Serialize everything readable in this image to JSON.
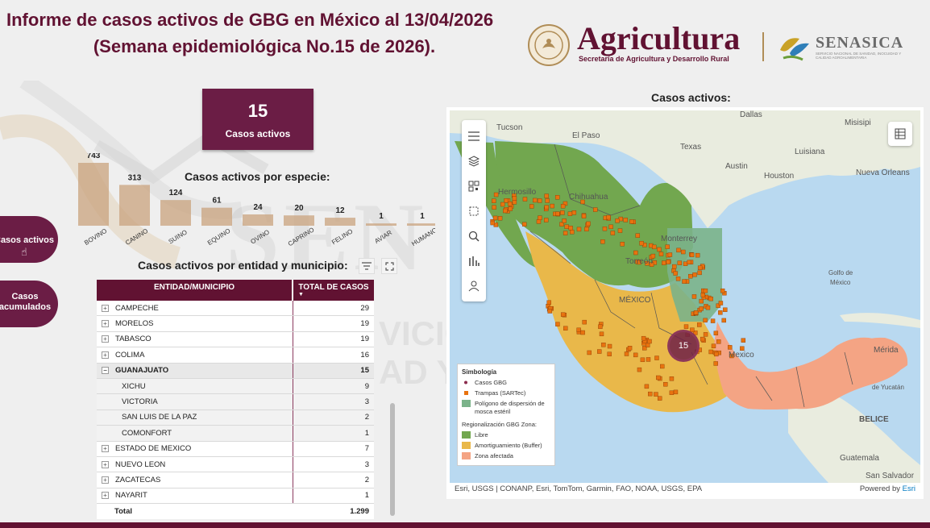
{
  "header": {
    "title_line1": "Informe de casos activos de GBG en México al 13/04/2026",
    "title_line2": "(Semana epidemiológica No.15 de 2026)."
  },
  "logos": {
    "agricultura": "Agricultura",
    "agricultura_sub": "Secretaría de Agricultura y Desarrollo Rural",
    "senasica": "SENASICA",
    "senasica_sub": "SERVICIO NACIONAL DE SANIDAD, INOCUIDAD Y CALIDAD AGROALIMENTARIA"
  },
  "kpi": {
    "value": "15",
    "label": "Casos activos"
  },
  "nav": {
    "active_cases_label": "Casos activos",
    "cumulative_line1": "Casos",
    "cumulative_line2": "acumulados"
  },
  "species_chart": {
    "title": "Casos activos por especie:"
  },
  "chart_data": {
    "type": "bar",
    "title": "Casos activos por especie:",
    "categories": [
      "BOVINO",
      "CANINO",
      "SUINO",
      "EQUINO",
      "OVINO",
      "CAPRINO",
      "FELINO",
      "AVIAR",
      "HUMANO"
    ],
    "values": [
      743,
      313,
      124,
      61,
      24,
      20,
      12,
      1,
      1
    ],
    "bar_color": "#c9a37e",
    "grid": false
  },
  "table": {
    "title": "Casos activos por entidad y municipio:",
    "col_entity": "ENTIDAD/MUNICIPIO",
    "col_total": "TOTAL DE CASOS",
    "rows": [
      {
        "name": "CAMPECHE",
        "total": "29",
        "level": 0,
        "expanded": false
      },
      {
        "name": "MORELOS",
        "total": "19",
        "level": 0,
        "expanded": false
      },
      {
        "name": "TABASCO",
        "total": "19",
        "level": 0,
        "expanded": false
      },
      {
        "name": "COLIMA",
        "total": "16",
        "level": 0,
        "expanded": false
      },
      {
        "name": "GUANAJUATO",
        "total": "15",
        "level": 0,
        "expanded": true
      },
      {
        "name": "XICHU",
        "total": "9",
        "level": 1
      },
      {
        "name": "VICTORIA",
        "total": "3",
        "level": 1
      },
      {
        "name": "SAN LUIS DE LA PAZ",
        "total": "2",
        "level": 1
      },
      {
        "name": "COMONFORT",
        "total": "1",
        "level": 1
      },
      {
        "name": "ESTADO DE MEXICO",
        "total": "7",
        "level": 0,
        "expanded": false
      },
      {
        "name": "NUEVO LEON",
        "total": "3",
        "level": 0,
        "expanded": false
      },
      {
        "name": "ZACATECAS",
        "total": "2",
        "level": 0,
        "expanded": false
      },
      {
        "name": "NAYARIT",
        "total": "1",
        "level": 0,
        "expanded": false
      }
    ],
    "total_label": "Total",
    "total_value": "1.299"
  },
  "map": {
    "title": "Casos activos:",
    "cluster_count": "15",
    "labels": {
      "tucson": "Tucson",
      "el_paso": "El Paso",
      "dallas": "Dallas",
      "texas": "Texas",
      "austin": "Austin",
      "houston": "Houston",
      "misisipi": "Misisipi",
      "luisiana": "Luisiana",
      "nueva_orleans": "Nueva Orleans",
      "hermosillo": "Hermosillo",
      "chihuahua": "Chihuahua",
      "monterrey": "Monterrey",
      "torreon": "Torreón",
      "mexico": "MÉXICO",
      "golfo1": "Golfo de",
      "golfo2": "México",
      "merida": "Mérida",
      "yucatan": "de Yucatán",
      "belice": "BELICE",
      "guatemala": "Guatemala",
      "san_salvador": "San Salvador",
      "mexico_city": "Mexico"
    },
    "legend": {
      "title": "Simbología",
      "casos": "Casos GBG",
      "trampas": "Trampas (SARTec)",
      "poligono": "Polígono de dispersión de mosca estéril",
      "regionalizacion": "Regionalización GBG Zona:",
      "libre": "Libre",
      "buffer": "Amortiguamiento (Buffer)",
      "afectada": "Zona afectada"
    },
    "attribution": "Esri, USGS | CONANP, Esri, TomTom, Garmin, FAO, NOAA, USGS, EPA",
    "powered_by": "Powered by",
    "esri": "Esri",
    "colors": {
      "libre": "#72a74f",
      "buffer": "#e9b84a",
      "afectada": "#f4a484",
      "poligono": "#7bb38a",
      "trampas": "#e8730f",
      "casos": "#8b2b4d",
      "water": "#b8d8f0"
    }
  }
}
